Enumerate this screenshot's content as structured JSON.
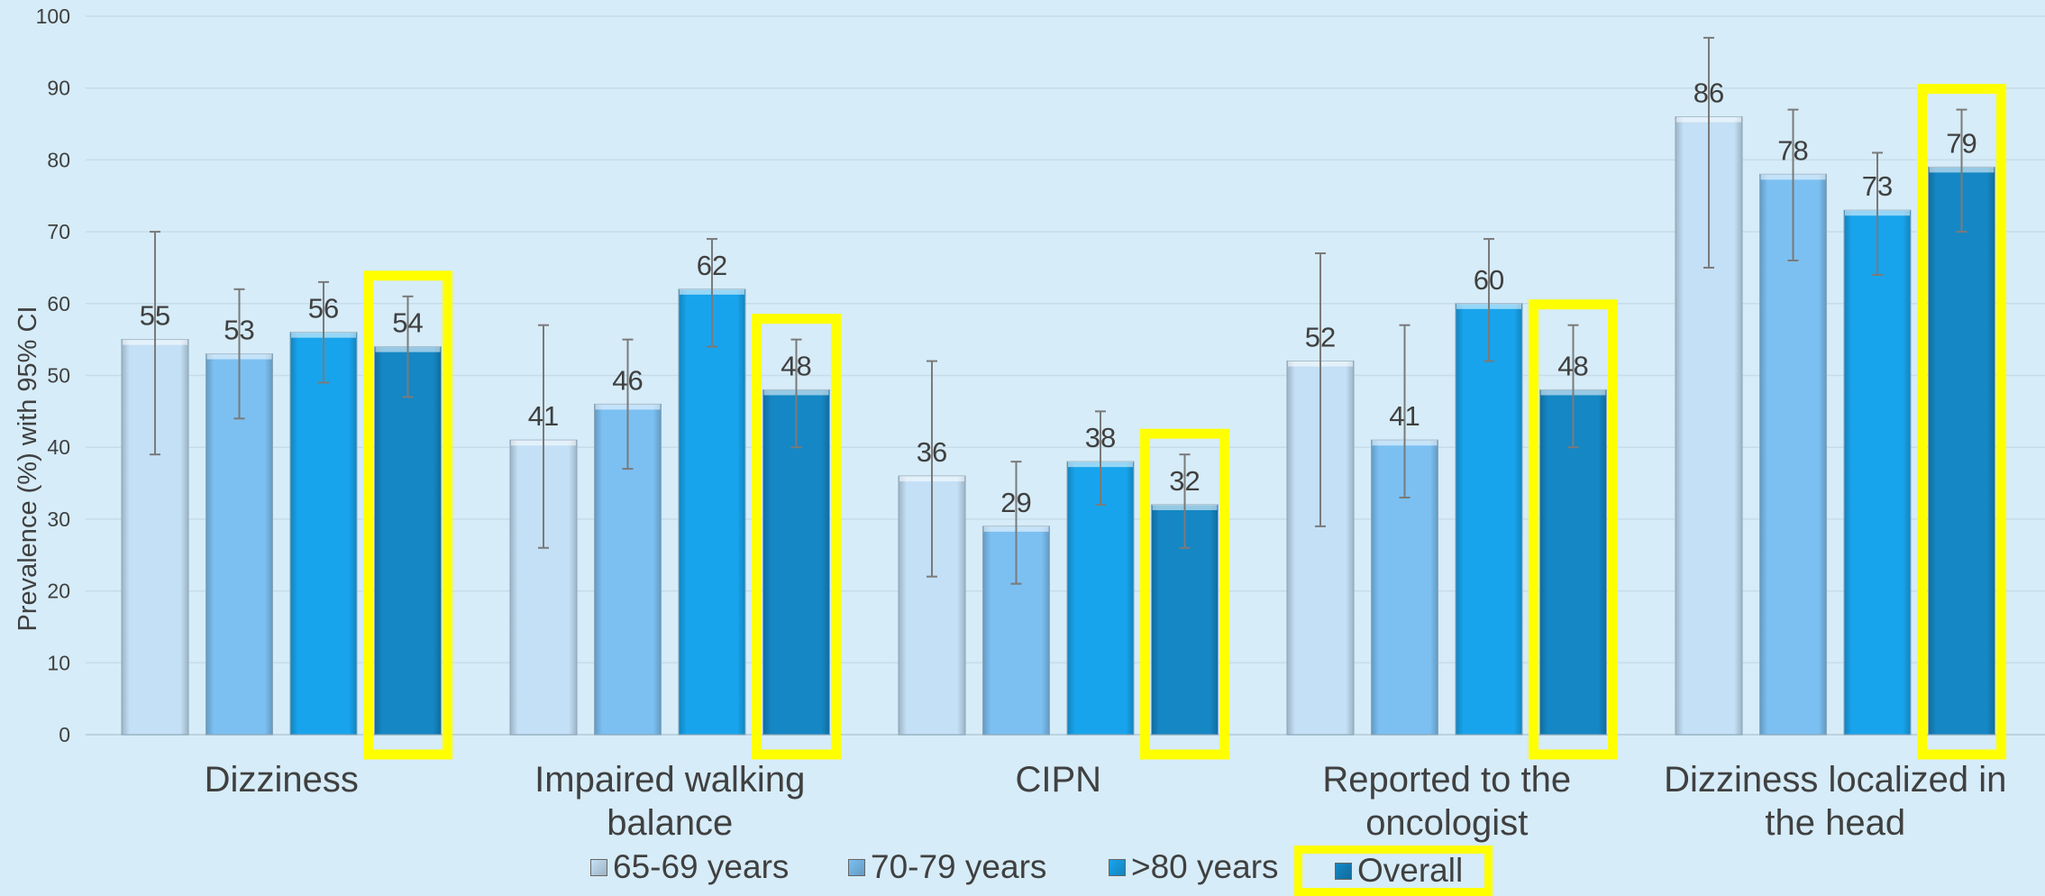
{
  "chart_data": {
    "type": "bar",
    "ylabel": "Prevalence (%) with 95% CI",
    "ylim": [
      0,
      100
    ],
    "yticks": [
      "0",
      "10",
      "20",
      "30",
      "40",
      "50",
      "60",
      "70",
      "80",
      "90",
      "100"
    ],
    "grid": true,
    "legend_position": "bottom",
    "categories": [
      [
        "Dizziness"
      ],
      [
        "Impaired walking",
        "balance"
      ],
      [
        "CIPN"
      ],
      [
        "Reported to the",
        "oncologist"
      ],
      [
        "Dizziness localized in",
        "the head"
      ]
    ],
    "series": [
      {
        "name": "65-69 years",
        "values": [
          55,
          41,
          36,
          52,
          86
        ],
        "ci_low": [
          39,
          26,
          22,
          29,
          65
        ],
        "ci_high": [
          70,
          57,
          52,
          67,
          97
        ]
      },
      {
        "name": "70-79 years",
        "values": [
          53,
          46,
          29,
          41,
          78
        ],
        "ci_low": [
          44,
          37,
          21,
          33,
          66
        ],
        "ci_high": [
          62,
          55,
          38,
          57,
          87
        ]
      },
      {
        "name": ">80 years",
        "values": [
          56,
          62,
          38,
          60,
          73
        ],
        "ci_low": [
          49,
          54,
          32,
          52,
          64
        ],
        "ci_high": [
          63,
          69,
          45,
          69,
          81
        ]
      },
      {
        "name": "Overall",
        "values": [
          54,
          48,
          32,
          48,
          79
        ],
        "ci_low": [
          47,
          40,
          26,
          40,
          70
        ],
        "ci_high": [
          61,
          55,
          39,
          57,
          87
        ]
      }
    ],
    "highlighted_series": "Overall",
    "colors": {
      "background": "#d6ecf8",
      "highlight": "#ffff00",
      "text": "#404040",
      "grid": "#c6dce8",
      "series": [
        "#c4e0f6",
        "#7cc0f2",
        "#18a4ec",
        "#1587c4"
      ]
    }
  }
}
